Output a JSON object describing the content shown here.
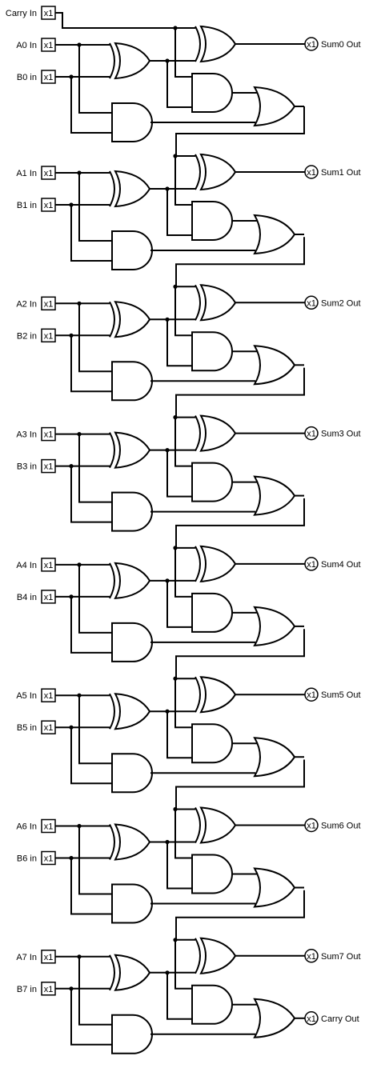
{
  "carry_in": {
    "label": "Carry In",
    "tag": "x1"
  },
  "carry_out": {
    "label": "Carry Out",
    "tag": "x1"
  },
  "input_tag": "x1",
  "output_tag": "x1",
  "stages": [
    {
      "a": "A0 In",
      "b": "B0 in",
      "sum": "Sum0 Out"
    },
    {
      "a": "A1 In",
      "b": "B1 in",
      "sum": "Sum1 Out"
    },
    {
      "a": "A2 In",
      "b": "B2 in",
      "sum": "Sum2 Out"
    },
    {
      "a": "A3 In",
      "b": "B3 in",
      "sum": "Sum3 Out"
    },
    {
      "a": "A4 In",
      "b": "B4 in",
      "sum": "Sum4 Out"
    },
    {
      "a": "A5 In",
      "b": "B5 in",
      "sum": "Sum5 Out"
    },
    {
      "a": "A6 In",
      "b": "B6 in",
      "sum": "Sum6 Out"
    },
    {
      "a": "A7 In",
      "b": "B7 in",
      "sum": "Sum7 Out"
    }
  ],
  "gate_types": [
    "xor",
    "xor",
    "and",
    "and",
    "or"
  ]
}
